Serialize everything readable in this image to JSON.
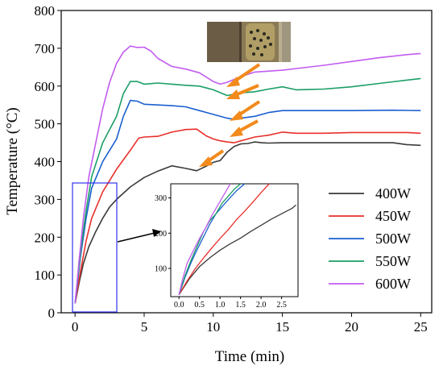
{
  "chart_data": {
    "type": "line",
    "title": "",
    "xlabel": "Time (min)",
    "ylabel": "Temperature (°C)",
    "xlim": [
      -1,
      25.8
    ],
    "ylim": [
      0,
      800
    ],
    "x_ticks": [
      0,
      5,
      10,
      15,
      20,
      25
    ],
    "y_ticks": [
      0,
      100,
      200,
      300,
      400,
      500,
      600,
      700,
      800
    ],
    "grid": false,
    "legend_position": "lower-right",
    "series": [
      {
        "name": "400W",
        "color": "#3a3a3a",
        "x": [
          0,
          0.3,
          0.6,
          1.0,
          1.5,
          2.0,
          2.5,
          3.0,
          4.0,
          5.0,
          6.0,
          7.0,
          8.0,
          8.8,
          9.5,
          10.0,
          10.5,
          11.0,
          11.5,
          12.0,
          12.5,
          13.0,
          13.5,
          14.0,
          15.0,
          17.0,
          20.0,
          23.0,
          24.0,
          25.0
        ],
        "y": [
          25,
          80,
          130,
          175,
          215,
          250,
          280,
          300,
          333,
          358,
          375,
          389,
          382,
          376,
          388,
          398,
          403,
          425,
          440,
          447,
          448,
          452,
          450,
          449,
          450,
          450,
          450,
          450,
          445,
          443
        ]
      },
      {
        "name": "450W",
        "color": "#e8302c",
        "x": [
          0,
          0.4,
          0.8,
          1.2,
          2.0,
          3.0,
          4.0,
          4.6,
          5.0,
          6.0,
          7.0,
          8.0,
          8.8,
          9.5,
          10.0,
          10.5,
          11.0,
          11.5,
          12.0,
          12.5,
          13.0,
          14.0,
          15.0,
          16.0,
          18.0,
          20.0,
          22.0,
          24.0,
          25.0
        ],
        "y": [
          25,
          110,
          190,
          250,
          320,
          380,
          430,
          462,
          465,
          467,
          478,
          485,
          486,
          468,
          460,
          455,
          452,
          450,
          455,
          460,
          465,
          470,
          478,
          475,
          475,
          477,
          477,
          477,
          475
        ]
      },
      {
        "name": "500W",
        "color": "#1a5fd0",
        "x": [
          0,
          0.4,
          0.8,
          1.2,
          2.0,
          3.0,
          3.5,
          4.0,
          4.5,
          5.0,
          6.0,
          7.0,
          8.0,
          9.0,
          10.0,
          11.0,
          11.5,
          12.0,
          13.0,
          14.0,
          15.0,
          17.0,
          20.0,
          23.0,
          25.0
        ],
        "y": [
          25,
          150,
          250,
          330,
          400,
          460,
          520,
          562,
          560,
          552,
          550,
          548,
          545,
          535,
          525,
          515,
          512,
          515,
          520,
          530,
          535,
          535,
          535,
          536,
          535
        ]
      },
      {
        "name": "550W",
        "color": "#1b9e66",
        "x": [
          0,
          0.4,
          0.8,
          1.2,
          2.0,
          3.0,
          3.5,
          4.0,
          4.5,
          5.0,
          6.0,
          7.0,
          8.0,
          9.0,
          10.0,
          11.0,
          12.0,
          13.0,
          14.0,
          15.0,
          16.0,
          18.0,
          20.0,
          22.0,
          25.0
        ],
        "y": [
          25,
          160,
          270,
          360,
          450,
          520,
          580,
          612,
          612,
          605,
          608,
          605,
          602,
          600,
          590,
          575,
          582,
          585,
          592,
          598,
          590,
          592,
          598,
          607,
          620
        ]
      },
      {
        "name": "600W",
        "color": "#c35cf0",
        "x": [
          0,
          0.3,
          0.6,
          1.0,
          1.5,
          2.0,
          2.5,
          3.0,
          3.5,
          4.0,
          4.5,
          5.0,
          5.5,
          6.0,
          7.0,
          8.0,
          9.0,
          10.0,
          10.5,
          11.0,
          12.0,
          13.0,
          15.0,
          18.0,
          20.0,
          22.0,
          24.0,
          25.0
        ],
        "y": [
          25,
          140,
          250,
          360,
          450,
          540,
          610,
          660,
          690,
          706,
          702,
          703,
          692,
          673,
          652,
          645,
          635,
          612,
          605,
          610,
          625,
          637,
          642,
          655,
          665,
          675,
          683,
          686
        ]
      }
    ],
    "inset": {
      "x_ticks_labels": [
        "0.0",
        "0.5",
        "1.0",
        "1.5",
        "2.0",
        "2.5"
      ],
      "y_ticks_labels": [
        "100",
        "200",
        "300"
      ],
      "xlim": [
        -0.2,
        2.9
      ],
      "ylim": [
        20,
        340
      ],
      "series": [
        {
          "name": "400W",
          "x": [
            0,
            0.25,
            0.5,
            0.75,
            1.0,
            1.25,
            1.5,
            1.75,
            2.0,
            2.25,
            2.5,
            2.75,
            2.85
          ],
          "y": [
            25,
            70,
            105,
            130,
            152,
            170,
            186,
            205,
            222,
            240,
            255,
            270,
            280
          ]
        },
        {
          "name": "450W",
          "x": [
            0,
            0.2,
            0.4,
            0.6,
            0.8,
            1.0,
            1.2,
            1.4,
            1.6,
            1.8,
            2.0,
            2.2
          ],
          "y": [
            25,
            65,
            100,
            130,
            158,
            185,
            210,
            238,
            262,
            288,
            315,
            340
          ]
        },
        {
          "name": "500W",
          "x": [
            0,
            0.15,
            0.3,
            0.45,
            0.6,
            0.75,
            0.9,
            1.05,
            1.2,
            1.4,
            1.6
          ],
          "y": [
            25,
            75,
            118,
            155,
            190,
            225,
            255,
            275,
            295,
            320,
            340
          ]
        },
        {
          "name": "550W",
          "x": [
            0,
            0.15,
            0.3,
            0.45,
            0.6,
            0.75,
            0.9,
            1.05,
            1.2,
            1.35,
            1.5
          ],
          "y": [
            25,
            80,
            125,
            165,
            205,
            235,
            255,
            285,
            305,
            325,
            340
          ]
        },
        {
          "name": "600W",
          "x": [
            0,
            0.1,
            0.2,
            0.35,
            0.5,
            0.65,
            0.8,
            0.95,
            1.1,
            1.25
          ],
          "y": [
            25,
            75,
            115,
            150,
            185,
            215,
            250,
            280,
            310,
            340
          ]
        }
      ]
    }
  }
}
